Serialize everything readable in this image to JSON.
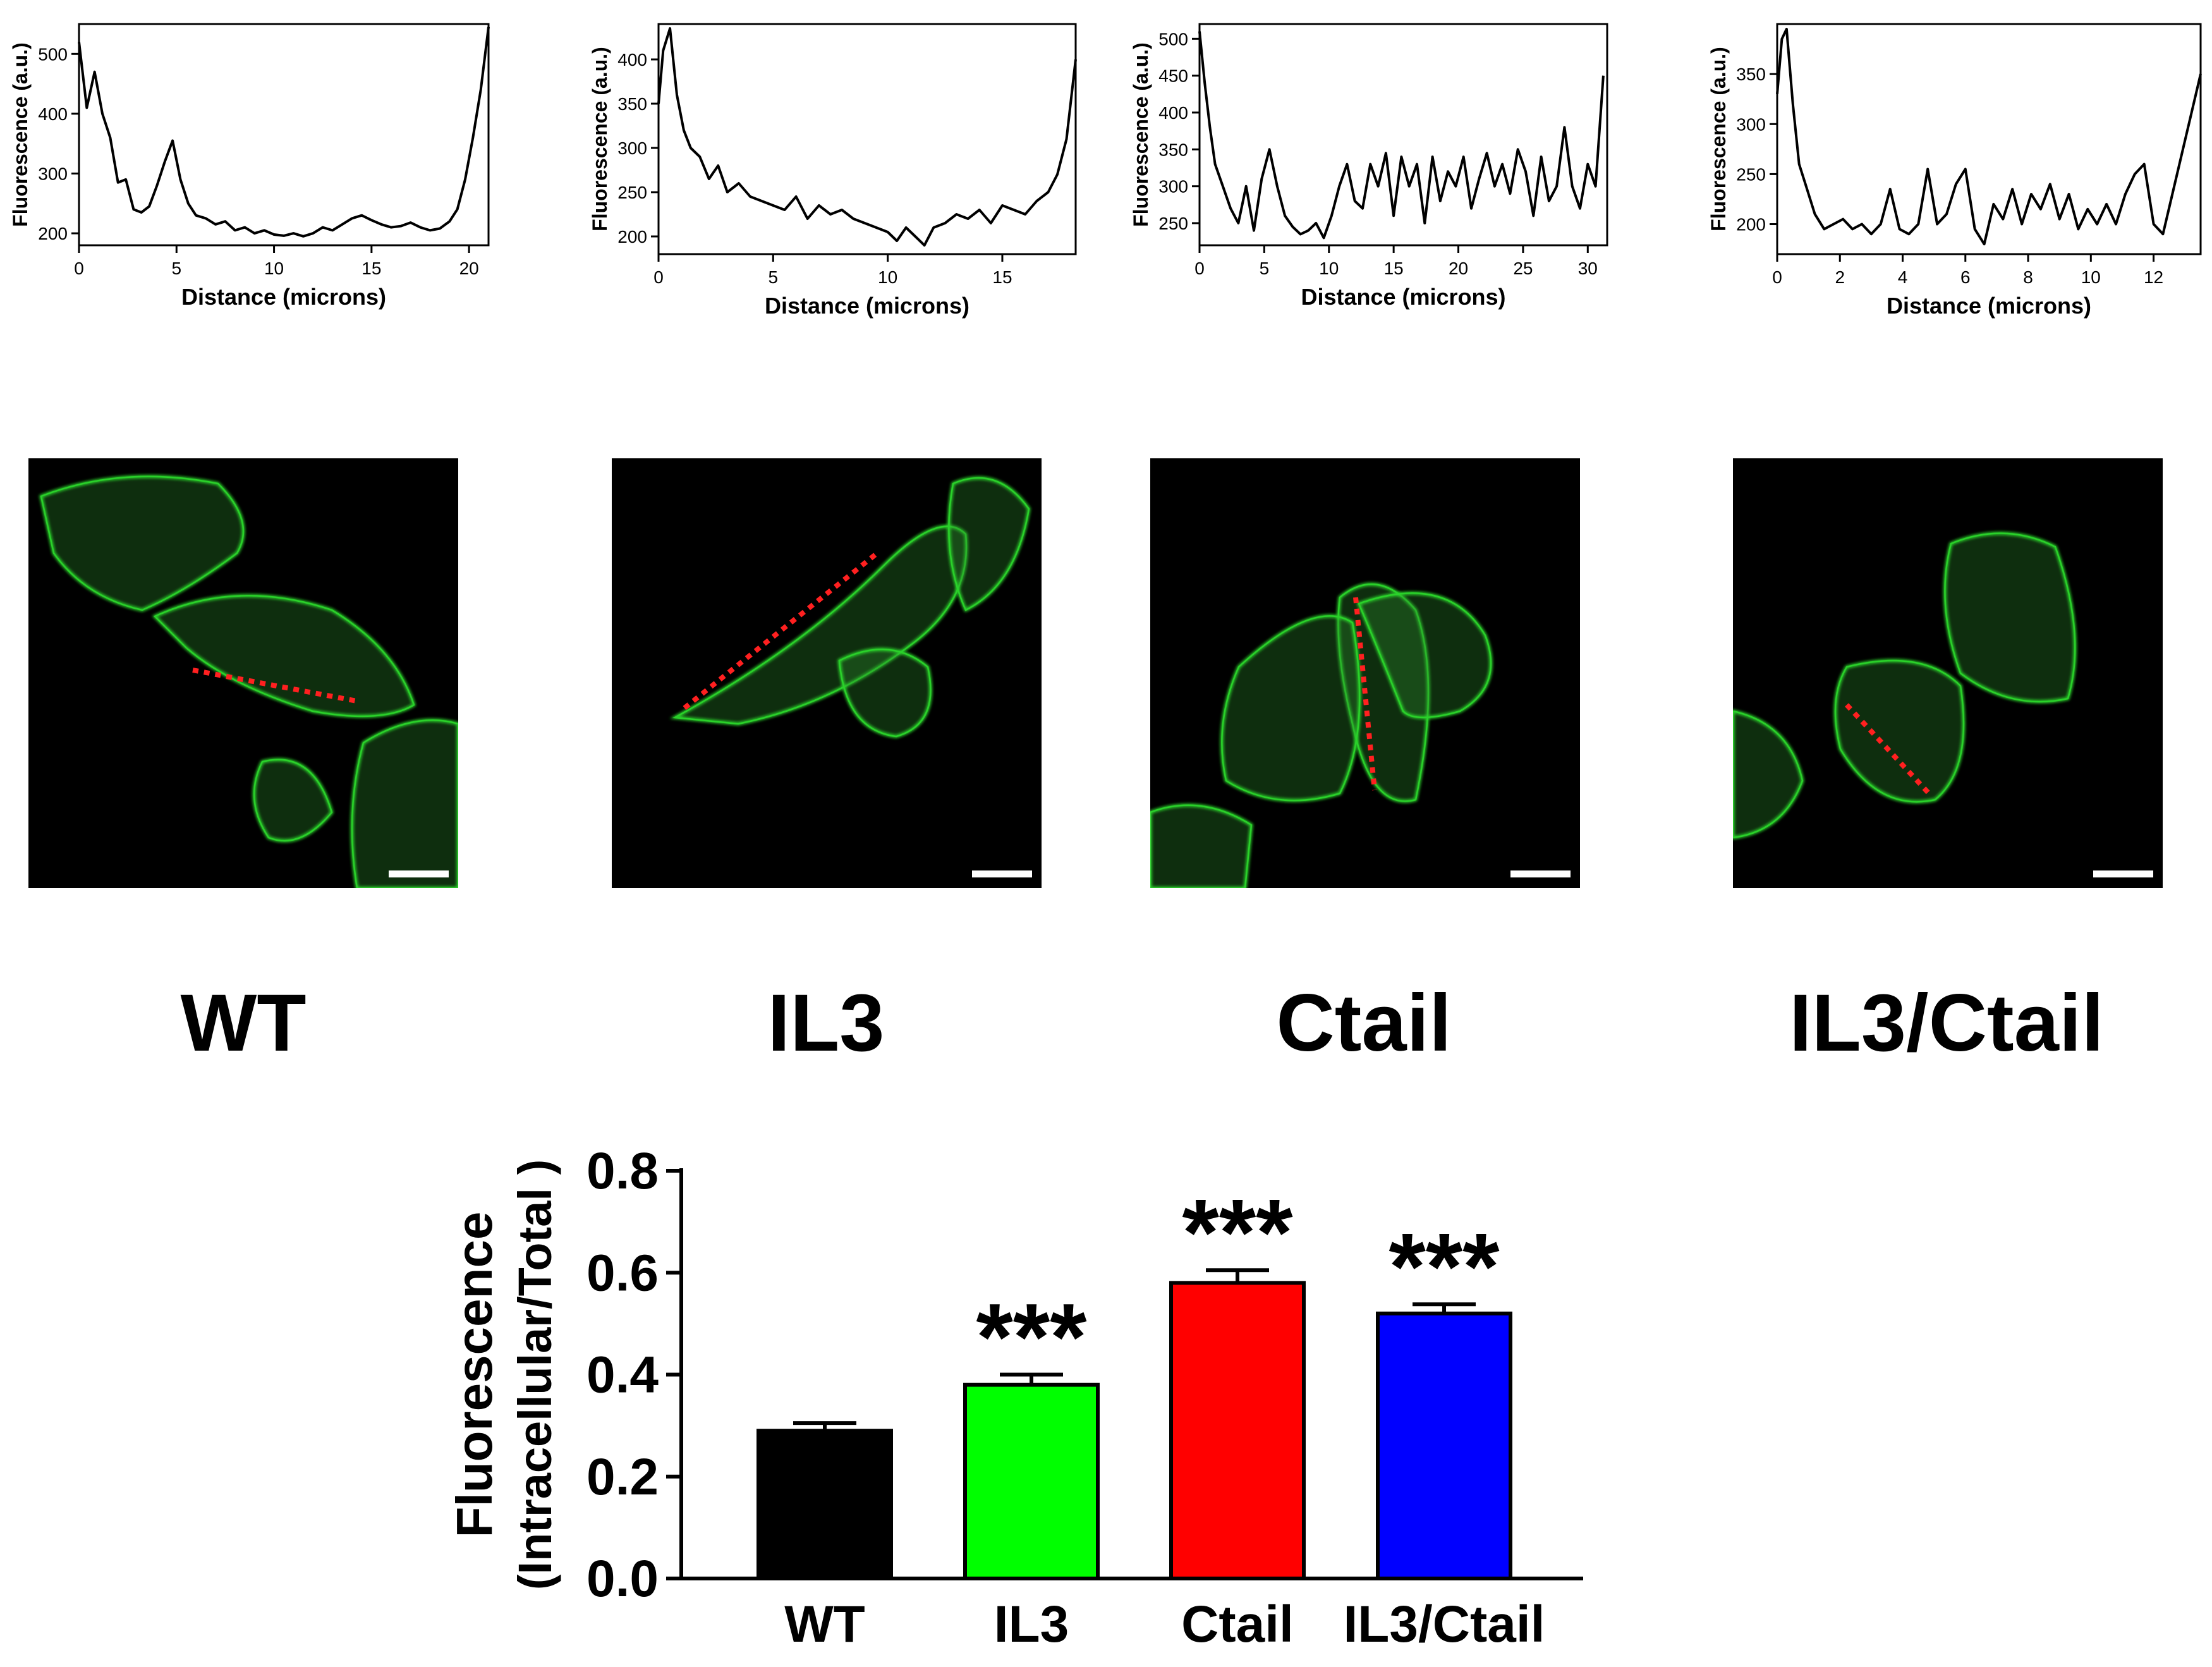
{
  "conditions": [
    "WT",
    "IL3",
    "Ctail",
    "IL3/Ctail"
  ],
  "colors": {
    "WT": "#000000",
    "IL3": "#00ff00",
    "Ctail": "#ff0000",
    "IL3/Ctail": "#0000ff",
    "membrane": "#2ad12a",
    "line_scan": "#ff2020"
  },
  "chart_data": [
    {
      "type": "line",
      "panel": "WT",
      "xlabel": "Distance (microns)",
      "ylabel": "Fluorescence (a.u.)",
      "xlim": [
        0,
        21
      ],
      "ylim": [
        180,
        550
      ],
      "xticks": [
        0,
        5,
        10,
        15,
        20
      ],
      "yticks": [
        200,
        300,
        400,
        500
      ],
      "x": [
        0,
        0.4,
        0.8,
        1.2,
        1.6,
        2.0,
        2.4,
        2.8,
        3.2,
        3.6,
        4.0,
        4.4,
        4.8,
        5.2,
        5.6,
        6.0,
        6.5,
        7.0,
        7.5,
        8.0,
        8.5,
        9.0,
        9.5,
        10.0,
        10.5,
        11.0,
        11.5,
        12.0,
        12.5,
        13.0,
        13.5,
        14.0,
        14.5,
        15.0,
        15.5,
        16.0,
        16.5,
        17.0,
        17.5,
        18.0,
        18.5,
        19.0,
        19.4,
        19.8,
        20.2,
        20.6,
        21.0
      ],
      "y": [
        520,
        410,
        470,
        400,
        360,
        285,
        290,
        240,
        235,
        245,
        280,
        320,
        355,
        290,
        250,
        230,
        225,
        215,
        220,
        205,
        210,
        200,
        205,
        198,
        196,
        200,
        195,
        200,
        210,
        205,
        215,
        225,
        230,
        222,
        215,
        210,
        212,
        218,
        210,
        205,
        208,
        220,
        240,
        290,
        360,
        440,
        545
      ]
    },
    {
      "type": "line",
      "panel": "IL3",
      "xlabel": "Distance (microns)",
      "ylabel": "Fluorescence (a.u.)",
      "xlim": [
        0,
        18.2
      ],
      "ylim": [
        180,
        440
      ],
      "xticks": [
        0,
        5,
        10,
        15
      ],
      "yticks": [
        200,
        250,
        300,
        350,
        400
      ],
      "x": [
        0,
        0.2,
        0.5,
        0.8,
        1.1,
        1.4,
        1.8,
        2.2,
        2.6,
        3.0,
        3.5,
        4.0,
        4.5,
        5.0,
        5.5,
        6.0,
        6.5,
        7.0,
        7.5,
        8.0,
        8.5,
        9.0,
        9.5,
        10.0,
        10.4,
        10.8,
        11.2,
        11.6,
        12.0,
        12.5,
        13.0,
        13.5,
        14.0,
        14.5,
        15.0,
        15.5,
        16.0,
        16.5,
        17.0,
        17.4,
        17.8,
        18.2
      ],
      "y": [
        350,
        410,
        435,
        360,
        320,
        300,
        290,
        265,
        280,
        250,
        260,
        245,
        240,
        235,
        230,
        245,
        220,
        235,
        225,
        230,
        220,
        215,
        210,
        205,
        195,
        210,
        200,
        190,
        210,
        215,
        225,
        220,
        230,
        215,
        235,
        230,
        225,
        240,
        250,
        270,
        310,
        400
      ]
    },
    {
      "type": "line",
      "panel": "Ctail",
      "xlabel": "Distance (microns)",
      "ylabel": "Fluorescence (a.u.)",
      "xlim": [
        0,
        31.5
      ],
      "ylim": [
        220,
        520
      ],
      "xticks": [
        0,
        5,
        10,
        15,
        20,
        25,
        30
      ],
      "yticks": [
        250,
        300,
        350,
        400,
        450,
        500
      ],
      "x": [
        0,
        0.4,
        0.8,
        1.2,
        1.8,
        2.4,
        3.0,
        3.6,
        4.2,
        4.8,
        5.4,
        6.0,
        6.6,
        7.2,
        7.8,
        8.4,
        9.0,
        9.6,
        10.2,
        10.8,
        11.4,
        12.0,
        12.6,
        13.2,
        13.8,
        14.4,
        15.0,
        15.6,
        16.2,
        16.8,
        17.4,
        18.0,
        18.6,
        19.2,
        19.8,
        20.4,
        21.0,
        21.6,
        22.2,
        22.8,
        23.4,
        24.0,
        24.6,
        25.2,
        25.8,
        26.4,
        27.0,
        27.6,
        28.2,
        28.8,
        29.4,
        30.0,
        30.6,
        31.2
      ],
      "y": [
        510,
        440,
        380,
        330,
        300,
        270,
        250,
        300,
        240,
        310,
        350,
        300,
        260,
        245,
        235,
        240,
        250,
        230,
        260,
        300,
        330,
        280,
        270,
        330,
        300,
        345,
        260,
        340,
        300,
        330,
        250,
        340,
        280,
        320,
        300,
        340,
        270,
        310,
        345,
        300,
        330,
        290,
        350,
        320,
        260,
        340,
        280,
        300,
        380,
        300,
        270,
        330,
        300,
        450
      ]
    },
    {
      "type": "line",
      "panel": "IL3/Ctail",
      "xlabel": "Distance (microns)",
      "ylabel": "Fluorescence (a.u.)",
      "xlim": [
        0,
        13.5
      ],
      "ylim": [
        170,
        400
      ],
      "xticks": [
        0,
        2,
        4,
        6,
        8,
        10,
        12
      ],
      "yticks": [
        200,
        250,
        300,
        350
      ],
      "x": [
        0,
        0.15,
        0.3,
        0.5,
        0.7,
        0.9,
        1.2,
        1.5,
        1.8,
        2.1,
        2.4,
        2.7,
        3.0,
        3.3,
        3.6,
        3.9,
        4.2,
        4.5,
        4.8,
        5.1,
        5.4,
        5.7,
        6.0,
        6.3,
        6.6,
        6.9,
        7.2,
        7.5,
        7.8,
        8.1,
        8.4,
        8.7,
        9.0,
        9.3,
        9.6,
        9.9,
        10.2,
        10.5,
        10.8,
        11.1,
        11.4,
        11.7,
        12.0,
        12.3,
        12.6,
        12.9,
        13.2,
        13.5
      ],
      "y": [
        330,
        385,
        395,
        320,
        260,
        240,
        210,
        195,
        200,
        205,
        195,
        200,
        190,
        200,
        235,
        195,
        190,
        200,
        255,
        200,
        210,
        240,
        255,
        195,
        180,
        220,
        205,
        235,
        200,
        230,
        215,
        240,
        205,
        230,
        195,
        215,
        200,
        220,
        200,
        230,
        250,
        260,
        200,
        190,
        230,
        270,
        310,
        350
      ]
    },
    {
      "type": "bar",
      "categories": [
        "WT",
        "IL3",
        "Ctail",
        "IL3/Ctail"
      ],
      "values": [
        0.29,
        0.38,
        0.58,
        0.52
      ],
      "errors": [
        0.015,
        0.02,
        0.025,
        0.018
      ],
      "significance": [
        "",
        "***",
        "***",
        "***"
      ],
      "colors": [
        "#000000",
        "#00ff00",
        "#ff0000",
        "#0000ff"
      ],
      "ylabel_line1": "Fluorescence",
      "ylabel_line2": "(Intracellular/Total )",
      "ylim": [
        0,
        0.8
      ],
      "yticks": [
        "0.0",
        "0.2",
        "0.4",
        "0.6",
        "0.8"
      ]
    }
  ]
}
